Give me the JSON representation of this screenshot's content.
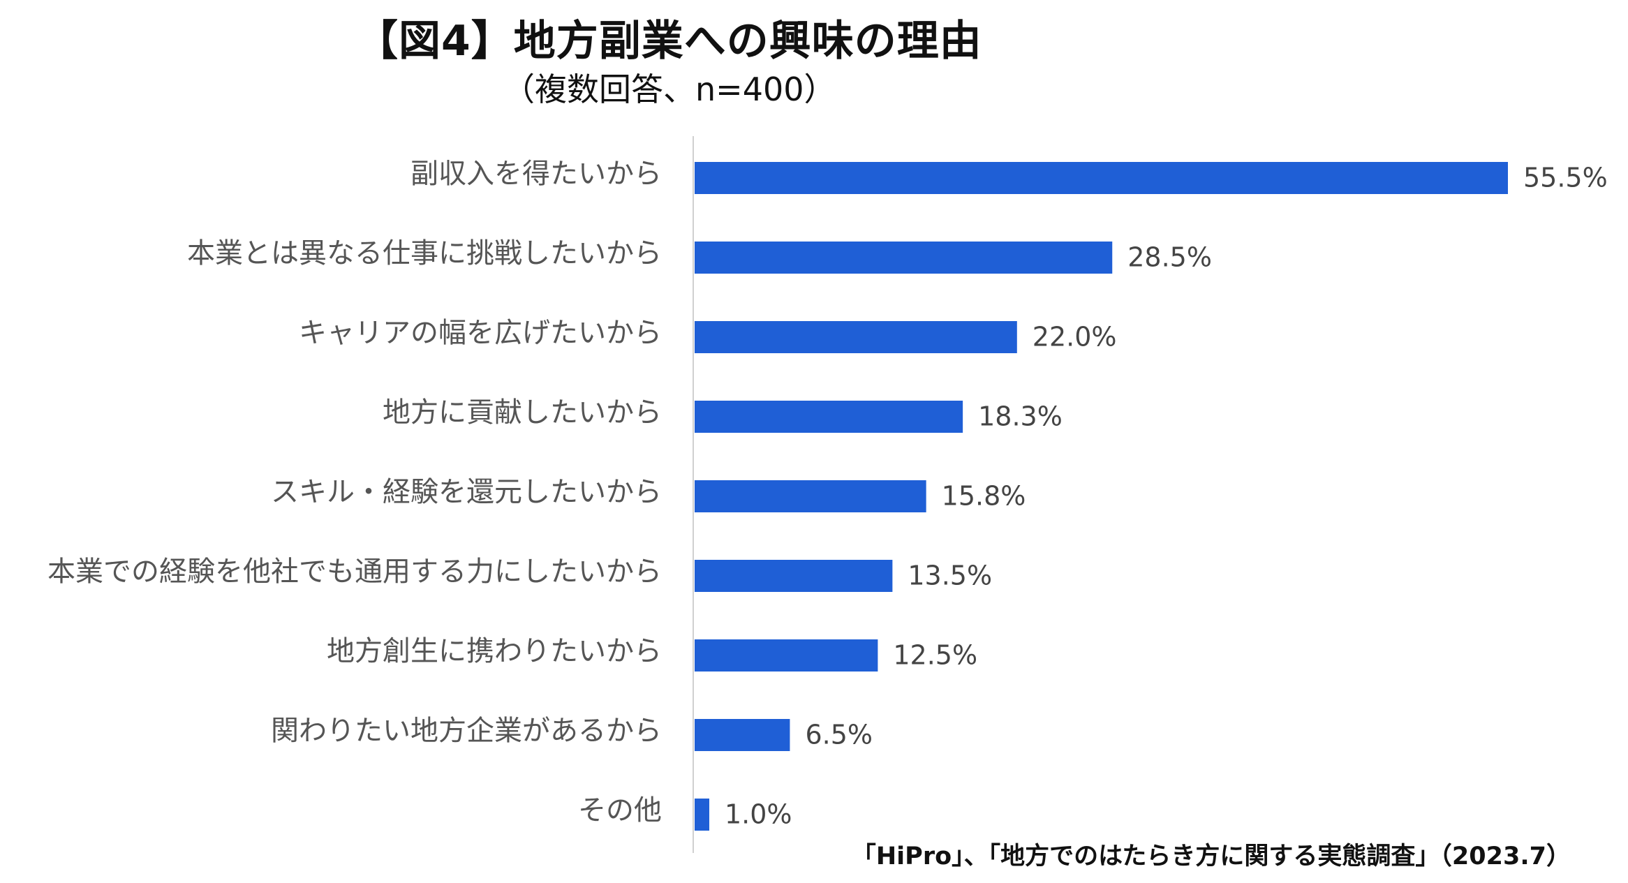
{
  "chart_data": {
    "type": "bar",
    "orientation": "horizontal",
    "title": "【図4】地方副業への興味の理由",
    "subtitle": "（複数回答、n=400）",
    "categories": [
      "副収入を得たいから",
      "本業とは異なる仕事に挑戦したいから",
      "キャリアの幅を広げたいから",
      "地方に貢献したいから",
      "スキル・経験を還元したいから",
      "本業での経験を他社でも通用する力にしたいから",
      "地方創生に携わりたいから",
      "関わりたい地方企業があるから",
      "その他"
    ],
    "values": [
      55.5,
      28.5,
      22.0,
      18.3,
      15.8,
      13.5,
      12.5,
      6.5,
      1.0
    ],
    "value_labels": [
      "55.5%",
      "28.5%",
      "22.0%",
      "18.3%",
      "15.8%",
      "13.5%",
      "12.5%",
      "6.5%",
      "1.0%"
    ],
    "unit": "%",
    "xlim": [
      0,
      55.5
    ],
    "bar_color": "#1f5fd6",
    "grid": false,
    "source": "「HiPro」、「地方でのはたらき方に関する実態調査」（2023.7）"
  }
}
